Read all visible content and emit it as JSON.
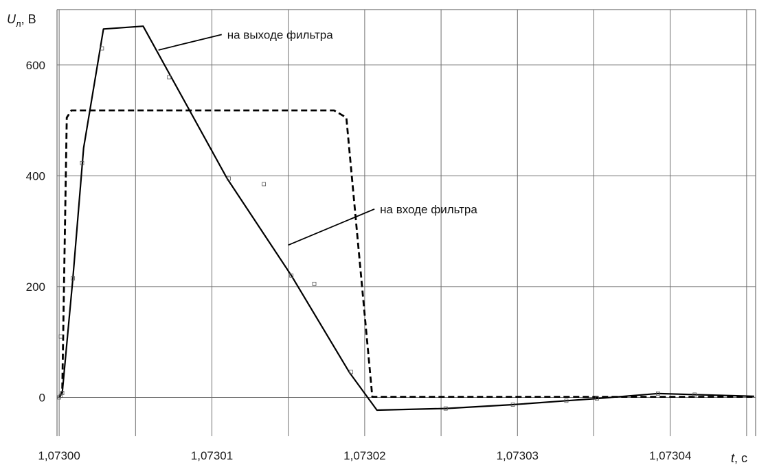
{
  "chart_data": {
    "type": "line",
    "title": "",
    "ylabel": {
      "symbol": "U",
      "subscript": "л",
      "unit": ", В"
    },
    "xlabel": {
      "symbol": "t",
      "unit": ", с"
    },
    "xlim": [
      1.07299986,
      1.07304559
    ],
    "ylim": [
      -70,
      700
    ],
    "x_ticks": [
      {
        "value": 1.073,
        "label": "1,07300"
      },
      {
        "value": 1.07301,
        "label": "1,07301"
      },
      {
        "value": 1.07302,
        "label": "1,07302"
      },
      {
        "value": 1.07303,
        "label": "1,07303"
      },
      {
        "value": 1.07304,
        "label": "1,07304"
      }
    ],
    "y_ticks": [
      {
        "value": 0,
        "label": "0"
      },
      {
        "value": 200,
        "label": "200"
      },
      {
        "value": 400,
        "label": "400"
      },
      {
        "value": 600,
        "label": "600"
      }
    ],
    "grid_x": [
      1.073,
      1.073005,
      1.07301,
      1.073015,
      1.07302,
      1.073025,
      1.07303,
      1.073035,
      1.07304,
      1.073045
    ],
    "grid_y": [
      0,
      200,
      400,
      600
    ],
    "grid": true,
    "series": [
      {
        "name": "на выходе фильтра",
        "style": "solid",
        "color": "#000000",
        "x": [
          1.073,
          1.0730002,
          1.0730009,
          1.0730016,
          1.0730029,
          1.0730055,
          1.073011,
          1.0730152,
          1.073019,
          1.0730208,
          1.0730253,
          1.0730297,
          1.0730332,
          1.0730352,
          1.0730392,
          1.0730416,
          1.0730455
        ],
        "y": [
          0,
          8,
          215,
          450,
          665,
          670,
          395,
          220,
          45,
          -23,
          -20,
          -13,
          -6,
          -2,
          7,
          5,
          2
        ]
      },
      {
        "name": "на входе фильтра",
        "style": "dashed",
        "color": "#000000",
        "x": [
          1.073,
          1.0730002,
          1.0730005,
          1.0730008,
          1.073018,
          1.0730188,
          1.0730205,
          1.0730455
        ],
        "y": [
          0,
          10,
          505,
          518,
          518,
          505,
          1,
          1
        ]
      }
    ],
    "markers": [
      {
        "x": 1.073,
        "y": 0
      },
      {
        "x": 1.0730002,
        "y": 8
      },
      {
        "x": 1.0730009,
        "y": 215
      },
      {
        "x": 1.0730015,
        "y": 423
      },
      {
        "x": 1.0730028,
        "y": 630
      },
      {
        "x": 1.0730072,
        "y": 578
      },
      {
        "x": 1.0730111,
        "y": 395
      },
      {
        "x": 1.0730152,
        "y": 220
      },
      {
        "x": 1.0730191,
        "y": 46
      },
      {
        "x": 1.0730253,
        "y": -20
      },
      {
        "x": 1.0730297,
        "y": -13
      },
      {
        "x": 1.0730332,
        "y": -6
      },
      {
        "x": 1.0730352,
        "y": -2
      },
      {
        "x": 1.0730392,
        "y": 7
      },
      {
        "x": 1.0730416,
        "y": 5
      },
      {
        "x": 1.0730001,
        "y": 110
      },
      {
        "x": 1.0730134,
        "y": 385
      },
      {
        "x": 1.0730167,
        "y": 205
      },
      {
        "x": 1.0730001,
        "y": 3
      }
    ],
    "annotations": [
      {
        "text": "на выходе фильтра",
        "series": 0,
        "anchor": {
          "x": 1.0730065,
          "y": 627
        },
        "text_at": {
          "x": 1.073011,
          "y": 655
        }
      },
      {
        "text": "на входе фильтра",
        "series": 1,
        "anchor": {
          "x": 1.073015,
          "y": 275
        },
        "text_at": {
          "x": 1.073021,
          "y": 340
        }
      }
    ]
  }
}
